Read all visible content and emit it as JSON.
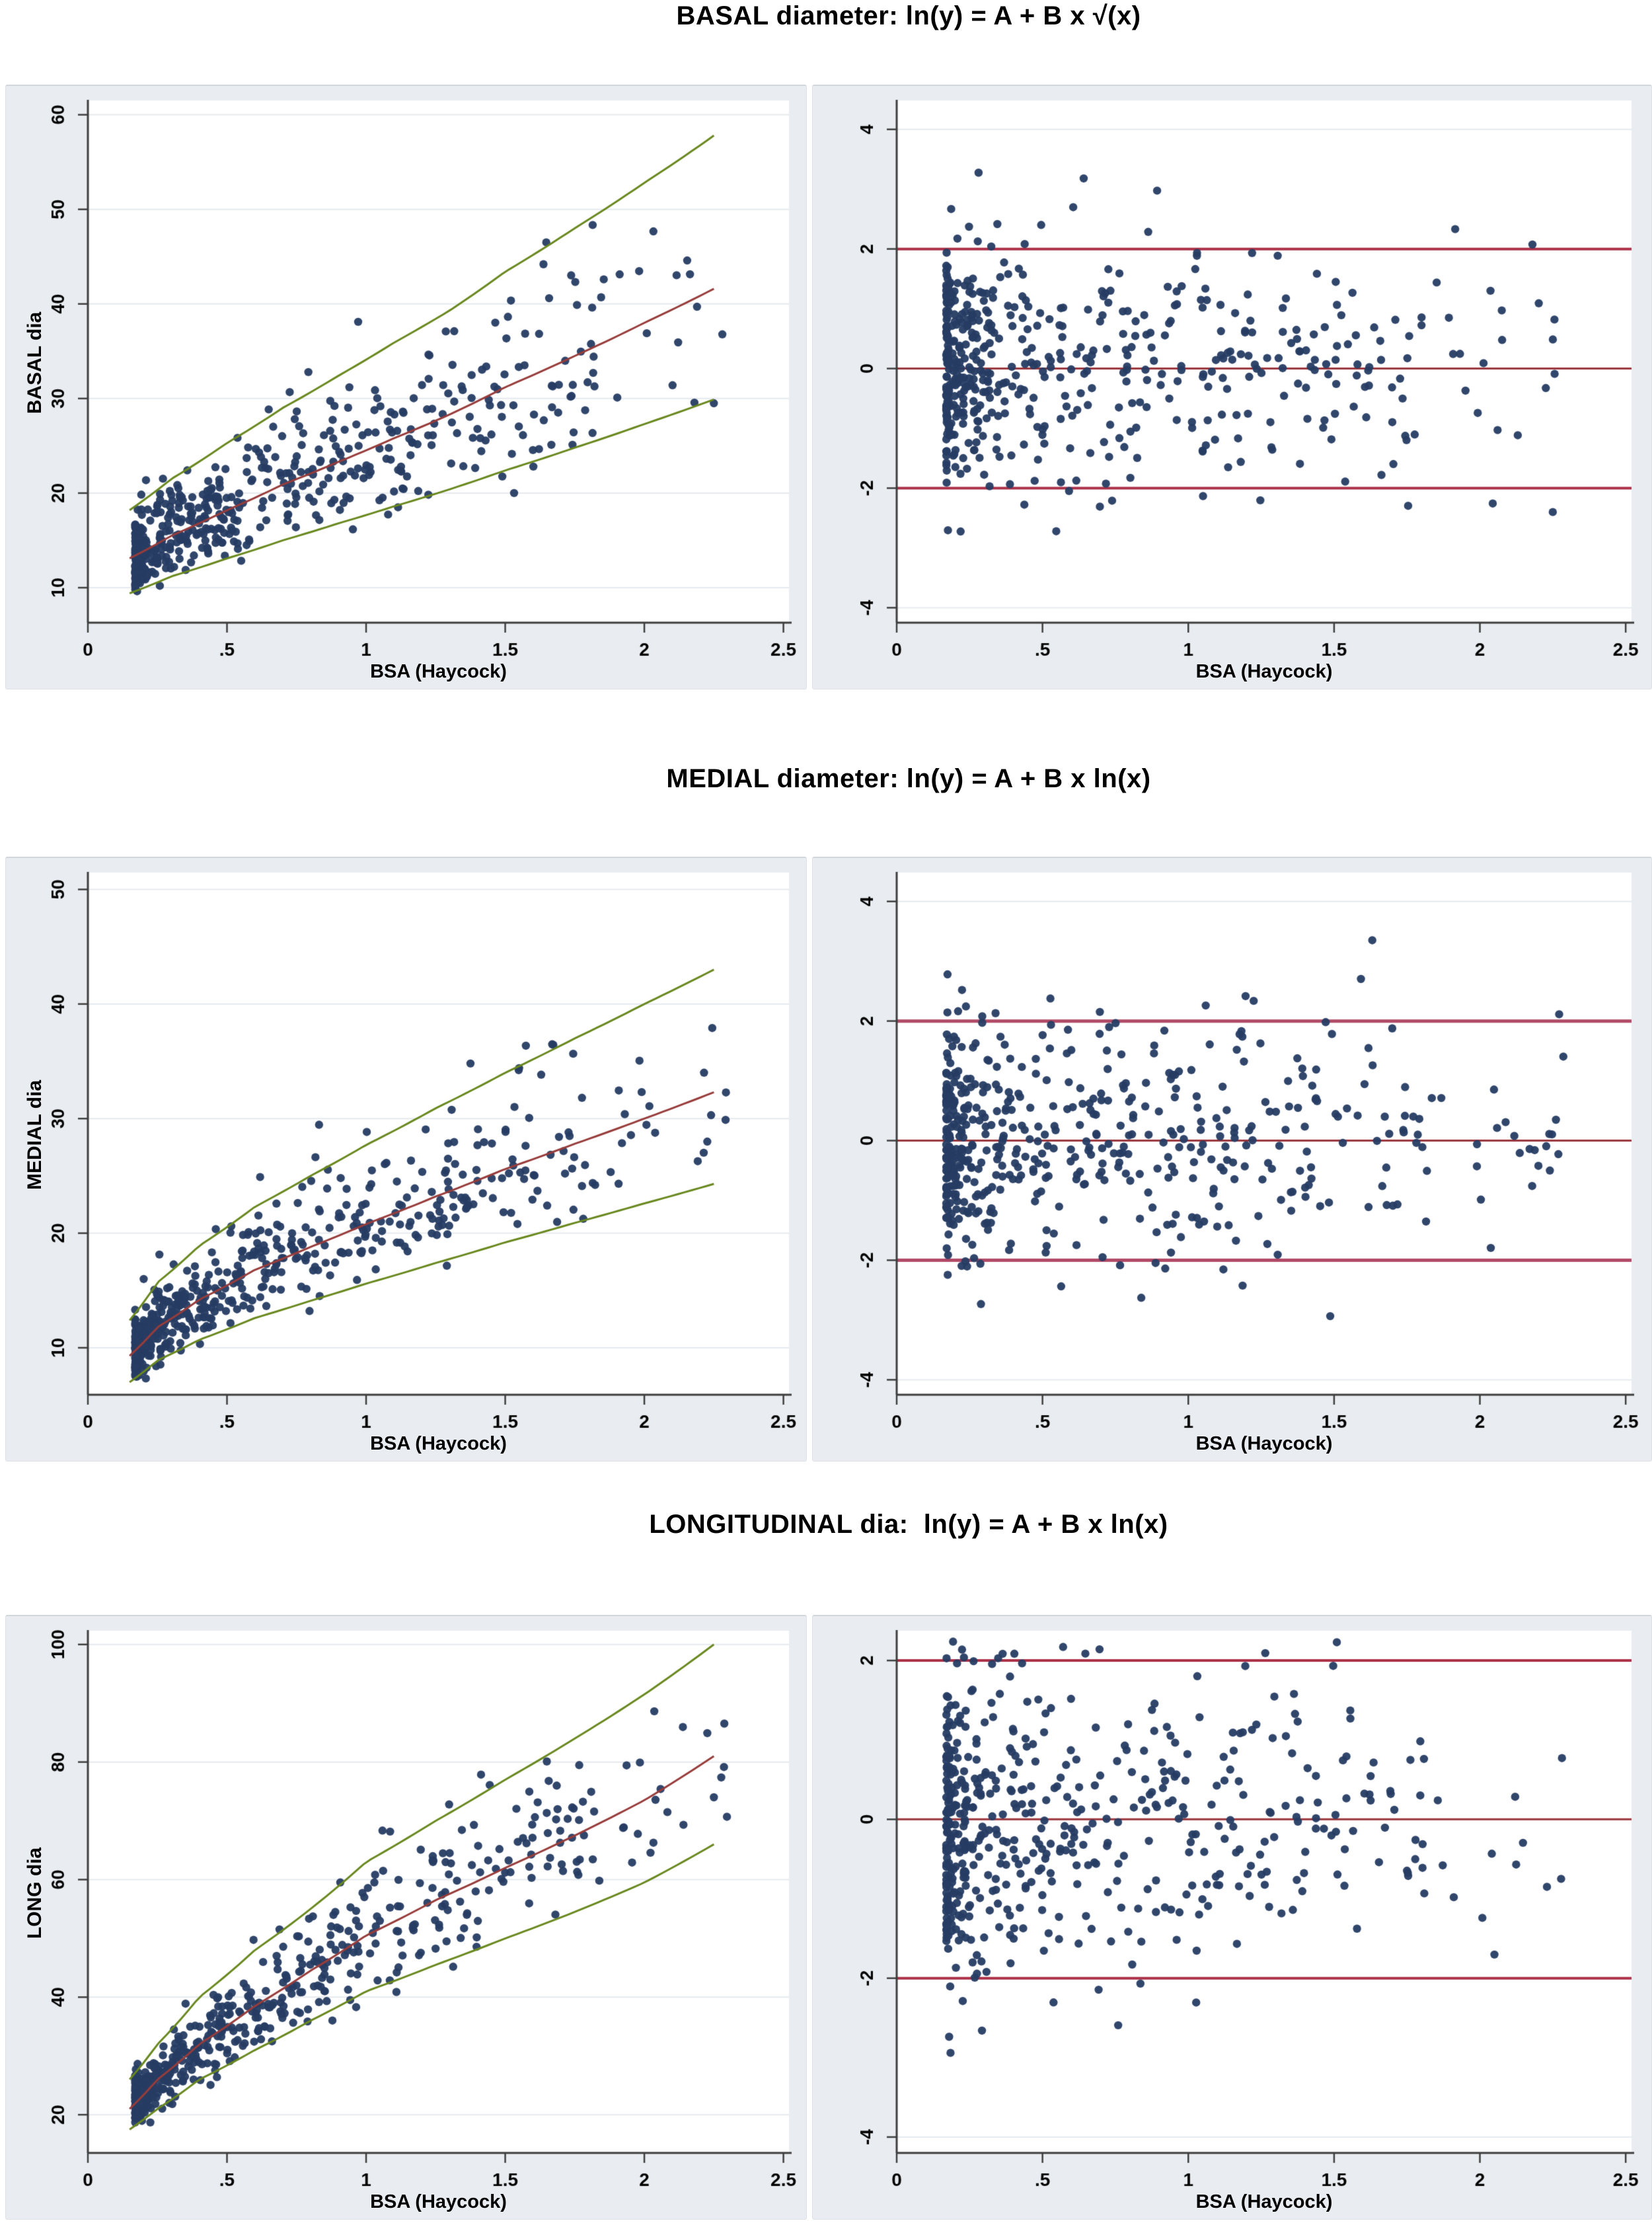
{
  "figure": {
    "background": "#ffffff",
    "panel_background": "#e9edf1",
    "rows": [
      {
        "title": "BASAL diameter: ln(y) = A + B x √(x)"
      },
      {
        "title": "MEDIAL diameter: ln(y) = A + B x ln(x)"
      },
      {
        "title": "LONGITUDINAL dia:  ln(y) = A + B x ln(x)"
      }
    ]
  },
  "chart_data": [
    {
      "name": "basal-fit-scatter",
      "type": "scatter",
      "row": 0,
      "side": "left",
      "title": "BASAL diameter: ln(y) = A + B x √(x)",
      "xlabel": "BSA (Haycock)",
      "ylabel": "BASAL dia",
      "xlim": [
        0,
        2.52
      ],
      "ylim": [
        6.3,
        61.3
      ],
      "xtick_values": [
        0,
        0.5,
        1,
        1.5,
        2,
        2.5
      ],
      "xtick_labels": [
        "0",
        ".5",
        "1",
        "1.5",
        "2",
        "2.5"
      ],
      "ytick_values": [
        10,
        20,
        30,
        40,
        50,
        60
      ],
      "ytick_labels": [
        "10",
        "20",
        "30",
        "40",
        "50",
        "60"
      ],
      "grid": true,
      "legend": false,
      "point_style": {
        "color": "#263c63",
        "radius": 6.2,
        "alpha": 0.95
      },
      "cloud": {
        "n": 545,
        "seed": 101,
        "z_clip": [
          -2.85,
          3.05
        ],
        "x_range": [
          0.17,
          2.3
        ],
        "x_note": "dense cluster near BSA 0.2, sparse tail beyond 1.8"
      },
      "curves": [
        {
          "name": "median fit",
          "color": "#973c3b",
          "width": 3,
          "points": [
            [
              0.15,
              13.1
            ],
            [
              0.3,
              15.5
            ],
            [
              0.5,
              18.2
            ],
            [
              0.7,
              20.9
            ],
            [
              0.9,
              23.3
            ],
            [
              1.1,
              25.8
            ],
            [
              1.3,
              28.3
            ],
            [
              1.5,
              31.2
            ],
            [
              1.75,
              34.5
            ],
            [
              2.0,
              38.0
            ],
            [
              2.25,
              41.6
            ]
          ]
        },
        {
          "name": "upper +2SD",
          "color": "#69881e",
          "width": 3,
          "points": [
            [
              0.15,
              18.2
            ],
            [
              0.3,
              21.5
            ],
            [
              0.5,
              25.3
            ],
            [
              0.7,
              29.0
            ],
            [
              0.9,
              32.4
            ],
            [
              1.1,
              35.9
            ],
            [
              1.3,
              39.3
            ],
            [
              1.5,
              43.4
            ],
            [
              1.75,
              48.0
            ],
            [
              2.0,
              52.8
            ],
            [
              2.25,
              57.8
            ]
          ]
        },
        {
          "name": "lower -2SD",
          "color": "#69881e",
          "width": 3,
          "points": [
            [
              0.15,
              9.4
            ],
            [
              0.3,
              11.2
            ],
            [
              0.5,
              13.1
            ],
            [
              0.7,
              15.0
            ],
            [
              0.9,
              16.8
            ],
            [
              1.1,
              18.6
            ],
            [
              1.3,
              20.4
            ],
            [
              1.5,
              22.4
            ],
            [
              1.75,
              24.8
            ],
            [
              2.0,
              27.3
            ],
            [
              2.25,
              29.9
            ]
          ]
        }
      ],
      "outlier_points": [
        [
          2.25,
          29.5
        ]
      ]
    },
    {
      "name": "basal-zscore-scatter",
      "type": "scatter",
      "row": 0,
      "side": "right",
      "title": "BASAL diameter: ln(y) = A + B x √(x)",
      "xlabel": "BSA (Haycock)",
      "ylabel": "",
      "xlim": [
        0,
        2.52
      ],
      "ylim": [
        -4.25,
        4.45
      ],
      "xtick_values": [
        0,
        0.5,
        1,
        1.5,
        2,
        2.5
      ],
      "xtick_labels": [
        "0",
        ".5",
        "1",
        "1.5",
        "2",
        "2.5"
      ],
      "ytick_values": [
        -4,
        -2,
        0,
        2,
        4
      ],
      "ytick_labels": [
        "-4",
        "-2",
        "0",
        "2",
        "4"
      ],
      "grid": true,
      "legend": false,
      "ref_lines": [
        {
          "y": 2,
          "color": "#ab3048",
          "width": 4
        },
        {
          "y": 0,
          "color": "#9a353c",
          "width": 3
        },
        {
          "y": -2,
          "color": "#ab3048",
          "width": 4
        }
      ],
      "point_style": {
        "color": "#263c63",
        "radius": 6.2,
        "alpha": 0.95
      },
      "cloud": {
        "n": 545,
        "seed": 102,
        "z_clip": [
          -3.05,
          3.35
        ],
        "x_range": [
          0.17,
          2.3
        ],
        "x_note": "z-scores vs BSA; dense column near 0.2"
      },
      "curves": [],
      "outlier_points": [
        [
          2.25,
          -2.4
        ]
      ]
    },
    {
      "name": "medial-fit-scatter",
      "type": "scatter",
      "row": 1,
      "side": "left",
      "title": "MEDIAL diameter: ln(y) = A + B x ln(x)",
      "xlabel": "BSA (Haycock)",
      "ylabel": "MEDIAL dia",
      "xlim": [
        0,
        2.52
      ],
      "ylim": [
        5.9,
        51.3
      ],
      "xtick_values": [
        0,
        0.5,
        1,
        1.5,
        2,
        2.5
      ],
      "xtick_labels": [
        "0",
        ".5",
        "1",
        "1.5",
        "2",
        "2.5"
      ],
      "ytick_values": [
        10,
        20,
        30,
        40,
        50
      ],
      "ytick_labels": [
        "10",
        "20",
        "30",
        "40",
        "50"
      ],
      "grid": true,
      "legend": false,
      "point_style": {
        "color": "#263c63",
        "radius": 6.2,
        "alpha": 0.95
      },
      "cloud": {
        "n": 545,
        "seed": 201,
        "z_clip": [
          -2.85,
          3.1
        ],
        "x_range": [
          0.17,
          2.3
        ],
        "x_note": "dense cluster near BSA 0.2, sparse tail beyond 1.8"
      },
      "curves": [
        {
          "name": "median fit",
          "color": "#973c3b",
          "width": 3,
          "points": [
            [
              0.15,
              9.3
            ],
            [
              0.25,
              11.8
            ],
            [
              0.4,
              14.2
            ],
            [
              0.6,
              16.8
            ],
            [
              0.8,
              18.8
            ],
            [
              1.0,
              20.8
            ],
            [
              1.25,
              23.2
            ],
            [
              1.5,
              25.6
            ],
            [
              1.75,
              27.8
            ],
            [
              2.0,
              30.0
            ],
            [
              2.25,
              32.3
            ]
          ]
        },
        {
          "name": "upper +2SD",
          "color": "#69881e",
          "width": 3,
          "points": [
            [
              0.15,
              12.4
            ],
            [
              0.25,
              15.7
            ],
            [
              0.4,
              18.9
            ],
            [
              0.6,
              22.3
            ],
            [
              0.8,
              25.0
            ],
            [
              1.0,
              27.7
            ],
            [
              1.25,
              30.9
            ],
            [
              1.5,
              34.0
            ],
            [
              1.75,
              37.0
            ],
            [
              2.0,
              40.0
            ],
            [
              2.25,
              43.0
            ]
          ]
        },
        {
          "name": "lower -2SD",
          "color": "#69881e",
          "width": 3,
          "points": [
            [
              0.15,
              7.0
            ],
            [
              0.25,
              8.9
            ],
            [
              0.4,
              10.7
            ],
            [
              0.6,
              12.6
            ],
            [
              0.8,
              14.1
            ],
            [
              1.0,
              15.6
            ],
            [
              1.25,
              17.4
            ],
            [
              1.5,
              19.2
            ],
            [
              1.75,
              20.9
            ],
            [
              2.0,
              22.6
            ],
            [
              2.25,
              24.3
            ]
          ]
        }
      ],
      "outlier_points": [
        [
          2.24,
          30.3
        ]
      ]
    },
    {
      "name": "medial-zscore-scatter",
      "type": "scatter",
      "row": 1,
      "side": "right",
      "title": "MEDIAL diameter: ln(y) = A + B x ln(x)",
      "xlabel": "BSA (Haycock)",
      "ylabel": "",
      "xlim": [
        0,
        2.52
      ],
      "ylim": [
        -4.25,
        4.45
      ],
      "xtick_values": [
        0,
        0.5,
        1,
        1.5,
        2,
        2.5
      ],
      "xtick_labels": [
        "0",
        ".5",
        "1",
        "1.5",
        "2",
        "2.5"
      ],
      "ytick_values": [
        -4,
        -2,
        0,
        2,
        4
      ],
      "ytick_labels": [
        "-4",
        "-2",
        "0",
        "2",
        "4"
      ],
      "grid": true,
      "legend": false,
      "ref_lines": [
        {
          "y": 2,
          "color": "#b04a66",
          "width": 5
        },
        {
          "y": 0,
          "color": "#9a353c",
          "width": 3
        },
        {
          "y": -2,
          "color": "#b04a66",
          "width": 5
        }
      ],
      "point_style": {
        "color": "#263c63",
        "radius": 6.2,
        "alpha": 0.95
      },
      "cloud": {
        "n": 545,
        "seed": 202,
        "z_clip": [
          -3.25,
          3.38
        ],
        "x_range": [
          0.17,
          2.3
        ],
        "x_note": "z-scores vs BSA; dense column near 0.2"
      },
      "curves": [],
      "outlier_points": [
        [
          2.24,
          -0.5
        ]
      ]
    },
    {
      "name": "longitudinal-fit-scatter",
      "type": "scatter",
      "row": 2,
      "side": "left",
      "title": "LONGITUDINAL dia:  ln(y) = A + B x ln(x)",
      "xlabel": "BSA (Haycock)",
      "ylabel": "LONG dia",
      "xlim": [
        0,
        2.52
      ],
      "ylim": [
        13.5,
        102
      ],
      "xtick_values": [
        0,
        0.5,
        1,
        1.5,
        2,
        2.5
      ],
      "xtick_labels": [
        "0",
        ".5",
        "1",
        "1.5",
        "2",
        "2.5"
      ],
      "ytick_values": [
        20,
        40,
        60,
        80,
        100
      ],
      "ytick_labels": [
        "20",
        "40",
        "60",
        "80",
        "100"
      ],
      "grid": true,
      "legend": false,
      "point_style": {
        "color": "#263c63",
        "radius": 6.2,
        "alpha": 0.95
      },
      "cloud": {
        "n": 545,
        "seed": 301,
        "z_clip": [
          -2.85,
          3.05
        ],
        "x_range": [
          0.17,
          2.3
        ],
        "x_note": "dense cluster near BSA 0.2, sparse tail beyond 1.8"
      },
      "curves": [
        {
          "name": "median fit",
          "color": "#973c3b",
          "width": 3,
          "points": [
            [
              0.15,
              21
            ],
            [
              0.25,
              26
            ],
            [
              0.4,
              32
            ],
            [
              0.6,
              38.5
            ],
            [
              0.8,
              44.5
            ],
            [
              1.0,
              50.5
            ],
            [
              1.25,
              56.5
            ],
            [
              1.5,
              62
            ],
            [
              1.75,
              67.5
            ],
            [
              2.0,
              73.5
            ],
            [
              2.25,
              81
            ]
          ]
        },
        {
          "name": "upper +2SD",
          "color": "#69881e",
          "width": 3,
          "points": [
            [
              0.15,
              26
            ],
            [
              0.25,
              32
            ],
            [
              0.4,
              40
            ],
            [
              0.6,
              48
            ],
            [
              0.8,
              55
            ],
            [
              1.0,
              63
            ],
            [
              1.25,
              70
            ],
            [
              1.5,
              77
            ],
            [
              1.75,
              84
            ],
            [
              2.0,
              91.5
            ],
            [
              2.25,
              100
            ]
          ]
        },
        {
          "name": "lower -2SD",
          "color": "#69881e",
          "width": 3,
          "points": [
            [
              0.15,
              17.5
            ],
            [
              0.25,
              21
            ],
            [
              0.4,
              26
            ],
            [
              0.6,
              31
            ],
            [
              0.8,
              36
            ],
            [
              1.0,
              41
            ],
            [
              1.25,
              45.5
            ],
            [
              1.5,
              50
            ],
            [
              1.75,
              54.5
            ],
            [
              2.0,
              59.5
            ],
            [
              2.25,
              66
            ]
          ]
        }
      ],
      "outlier_points": [
        [
          2.25,
          74
        ]
      ]
    },
    {
      "name": "longitudinal-zscore-scatter",
      "type": "scatter",
      "row": 2,
      "side": "right",
      "title": "LONGITUDINAL dia:  ln(y) = A + B x ln(x)",
      "xlabel": "BSA (Haycock)",
      "ylabel": "",
      "xlim": [
        0,
        2.52
      ],
      "ylim": [
        -4.2,
        2.35
      ],
      "xtick_values": [
        0,
        0.5,
        1,
        1.5,
        2,
        2.5
      ],
      "xtick_labels": [
        "0",
        ".5",
        "1",
        "1.5",
        "2",
        "2.5"
      ],
      "ytick_values": [
        -4,
        -2,
        0,
        2
      ],
      "ytick_labels": [
        "-4",
        "-2",
        "0",
        "2"
      ],
      "grid": true,
      "legend": false,
      "ref_lines": [
        {
          "y": 2,
          "color": "#ab3048",
          "width": 4
        },
        {
          "y": 0,
          "color": "#9a353c",
          "width": 3
        },
        {
          "y": -2,
          "color": "#ab3048",
          "width": 4
        }
      ],
      "point_style": {
        "color": "#263c63",
        "radius": 6.2,
        "alpha": 0.95
      },
      "cloud": {
        "n": 545,
        "seed": 302,
        "z_clip": [
          -3.4,
          2.28
        ],
        "x_range": [
          0.17,
          2.3
        ],
        "x_note": "z-scores vs BSA; dense column near 0.2"
      },
      "curves": [],
      "outlier_points": [
        [
          2.23,
          -0.85
        ]
      ]
    }
  ]
}
